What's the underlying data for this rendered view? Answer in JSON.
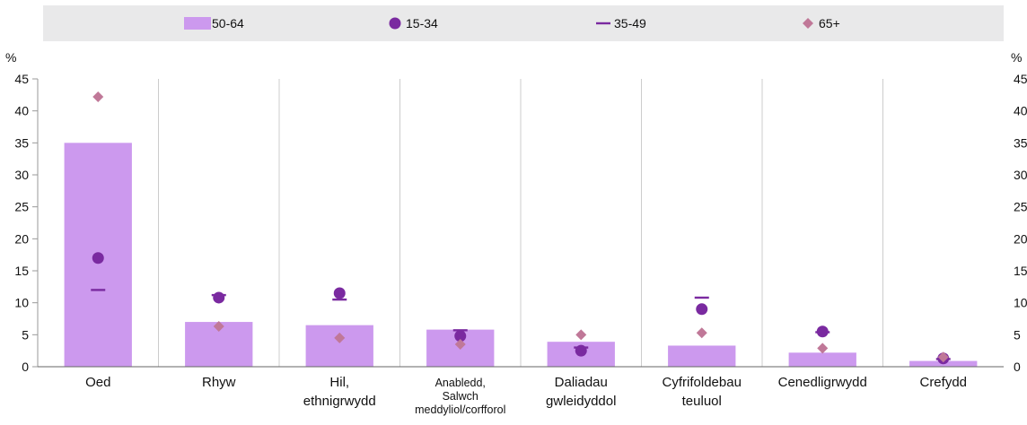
{
  "chart_data": {
    "type": "bar",
    "categories": [
      [
        "Oed"
      ],
      [
        "Rhyw"
      ],
      [
        "Hil,",
        "ethnigrwydd"
      ],
      [
        "Anabledd,",
        "Salwch",
        "meddyliol/corfforol"
      ],
      [
        "Daliadau",
        "gwleidyddol"
      ],
      [
        "Cyfrifoldebau",
        "teuluol"
      ],
      [
        "Cenedligrwydd"
      ],
      [
        "Crefydd"
      ]
    ],
    "series": [
      {
        "name": "50-64",
        "mark": "bar",
        "color": "#cc99ee",
        "values": [
          35,
          7,
          6.5,
          5.8,
          3.9,
          3.3,
          2.2,
          0.9
        ]
      },
      {
        "name": "15-34",
        "mark": "circle",
        "color": "#7a2aa0",
        "values": [
          17,
          10.8,
          11.5,
          4.8,
          2.5,
          9,
          5.5,
          1.3
        ]
      },
      {
        "name": "35-49",
        "mark": "dash",
        "color": "#7a2aa0",
        "values": [
          12,
          11.2,
          10.5,
          5.7,
          3.0,
          10.8,
          5.4,
          1.2
        ]
      },
      {
        "name": "65+",
        "mark": "diamond",
        "color": "#c07898",
        "values": [
          42.2,
          6.3,
          4.5,
          3.5,
          5.0,
          5.3,
          2.9,
          1.5
        ]
      }
    ],
    "ylabel_left": "%",
    "ylabel_right": "%",
    "ylim": [
      0,
      45
    ],
    "yticks": [
      0,
      5,
      10,
      15,
      20,
      25,
      30,
      35,
      40,
      45
    ],
    "grid": true,
    "legend_position": "top"
  }
}
